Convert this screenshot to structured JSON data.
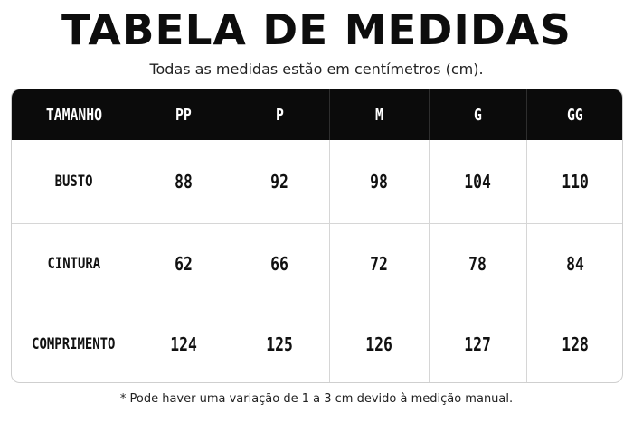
{
  "title": "TABELA DE MEDIDAS",
  "subtitle": "Todas as medidas estão em centímetros (cm).",
  "table": {
    "corner": "TAMANHO",
    "sizes": [
      "PP",
      "P",
      "M",
      "G",
      "GG"
    ],
    "rows": [
      {
        "label": "BUSTO",
        "values": [
          "88",
          "92",
          "98",
          "104",
          "110"
        ]
      },
      {
        "label": "CINTURA",
        "values": [
          "62",
          "66",
          "72",
          "78",
          "84"
        ]
      },
      {
        "label": "COMPRIMENTO",
        "values": [
          "124",
          "125",
          "126",
          "127",
          "128"
        ]
      }
    ]
  },
  "footnote": "* Pode haver uma variação de 1 a 3 cm devido à medição manual.",
  "colors": {
    "header_bg": "#0b0b0b",
    "header_text": "#ffffff",
    "grid": "#d6d6d6"
  }
}
